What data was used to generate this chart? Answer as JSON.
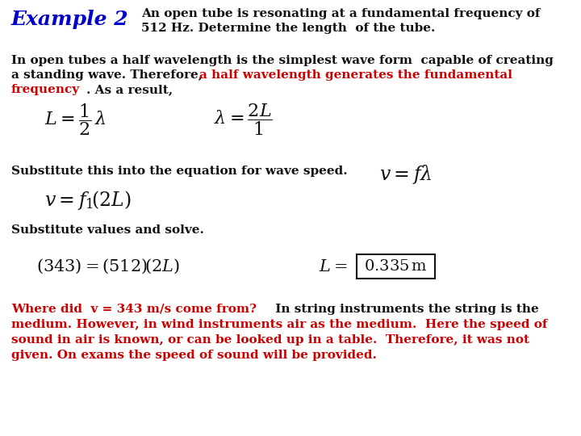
{
  "title_example": "Example 2",
  "title_desc_line1": "An open tube is resonating at a fundamental frequency of",
  "title_desc_line2": "512 Hz. Determine the length  of the tube.",
  "body_line1": "In open tubes a half wavelength is the simplest wave form  capable of creating",
  "body_line2_black": "a standing wave. Therefore, ",
  "body_line2_red": "a half wavelength generates the fundamental",
  "body_line3_red": "frequency",
  "body_line3_black": ". As a result,",
  "sub_line1": "Substitute this into the equation for wave speed.",
  "sub_line2": "Substitute values and solve.",
  "bot_red1": "Where did  v = 343 m/s come from?",
  "bot_black1": " In string instruments the string is the",
  "bot_line2": "medium. However, in wind instruments air as the medium.  Here the speed of",
  "bot_line3": "sound in air is known, or can be looked up in a table.  Therefore, it was not",
  "bot_line4": "given. On exams the speed of sound will be provided.",
  "color_blue": "#0000CD",
  "color_red": "#CC0000",
  "color_black": "#111111",
  "bg_color": "#FFFFFF",
  "fs_title": 18,
  "fs_body": 11,
  "fs_formula": 13
}
